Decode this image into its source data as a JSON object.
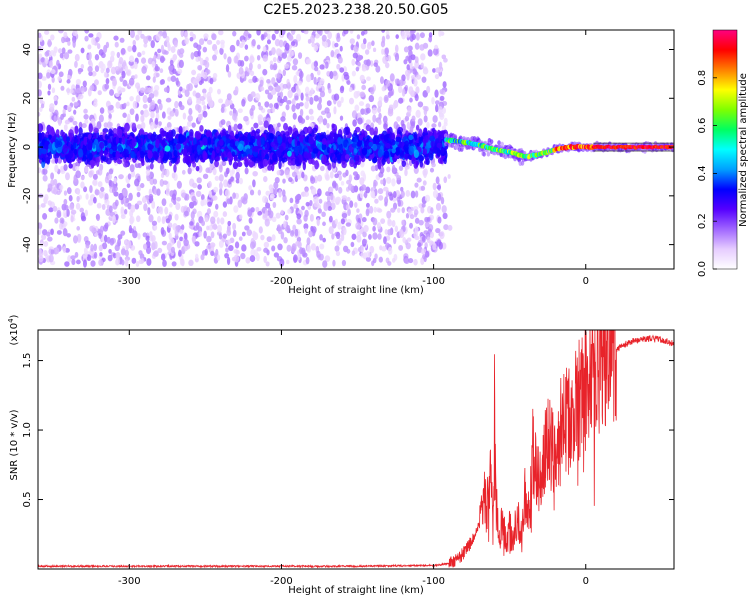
{
  "title": "C2E5.2023.238.20.50.G05",
  "colors": {
    "snr_line": "#e8232a",
    "axis": "#000000",
    "background": "#ffffff"
  },
  "chart_data": [
    {
      "type": "heatmap",
      "name": "spectrogram",
      "xlabel": "Height of straight line (km)",
      "ylabel": "Frequency (Hz)",
      "xlim": [
        -360,
        58
      ],
      "ylim": [
        -50,
        48
      ],
      "xticks": [
        -300,
        -200,
        -100,
        0
      ],
      "xtick_labels": [
        "-300",
        "-200",
        "-100",
        "0"
      ],
      "yticks": [
        -40,
        -20,
        0,
        20,
        40
      ],
      "ytick_labels": [
        "-40",
        "-20",
        "0",
        "20",
        "40"
      ],
      "colorbar": {
        "label": "Normalized spectral amplitude",
        "range": [
          0.0,
          1.0
        ],
        "ticks": [
          0.0,
          0.2,
          0.4,
          0.6,
          0.8
        ],
        "tick_labels": [
          "0.0",
          "0.2",
          "0.4",
          "0.6",
          "0.8"
        ],
        "colormap": [
          "#ffffff",
          "#e6ccff",
          "#a066ff",
          "#5500ff",
          "#0000ff",
          "#00a0ff",
          "#00ffff",
          "#00ff60",
          "#7fff00",
          "#ffff00",
          "#ff8000",
          "#ff0000",
          "#ff0080"
        ]
      },
      "features": [
        {
          "region": "noise",
          "x_range": [
            -360,
            -92
          ],
          "center_frequency": 0,
          "description_values": {
            "core_halfwidth": 8,
            "scatter_halfwidth": 48
          }
        },
        {
          "region": "signal_track",
          "x": [
            -92,
            -80,
            -70,
            -60,
            -50,
            -40,
            -30,
            -20,
            -10,
            0,
            10,
            20,
            40,
            58
          ],
          "frequency": [
            3,
            2,
            1,
            -1,
            -2,
            -4,
            -3,
            -1,
            0,
            0,
            0,
            0,
            0,
            0
          ]
        }
      ]
    },
    {
      "type": "line",
      "name": "snr",
      "xlabel": "Height of straight line (km)",
      "ylabel": "SNR (10 * v/v)",
      "multiplier_label": "(x10",
      "multiplier_exp": "4",
      "multiplier_close": ")",
      "xlim": [
        -360,
        58
      ],
      "ylim": [
        0.0,
        1.72
      ],
      "xticks": [
        -300,
        -200,
        -100,
        0
      ],
      "xtick_labels": [
        "-300",
        "-200",
        "-100",
        "0"
      ],
      "yticks": [
        0.5,
        1.0,
        1.5
      ],
      "ytick_labels": [
        "0.5",
        "1.0",
        "1.5"
      ],
      "series": [
        {
          "name": "SNR",
          "x": [
            -360,
            -300,
            -250,
            -200,
            -150,
            -100,
            -90,
            -85,
            -80,
            -75,
            -70,
            -67,
            -65,
            -63,
            -61,
            -60,
            -59,
            -57,
            -55,
            -52,
            -50,
            -48,
            -45,
            -42,
            -40,
            -37,
            -35,
            -30,
            -25,
            -20,
            -15,
            -10,
            -5,
            0,
            5,
            10,
            20,
            30,
            40,
            50,
            58
          ],
          "y": [
            0.02,
            0.02,
            0.02,
            0.02,
            0.02,
            0.025,
            0.04,
            0.06,
            0.12,
            0.2,
            0.3,
            0.55,
            0.4,
            0.8,
            0.3,
            1.15,
            0.5,
            0.25,
            0.35,
            0.2,
            0.3,
            0.2,
            0.4,
            0.2,
            0.55,
            0.35,
            0.85,
            0.65,
            0.95,
            0.8,
            1.1,
            1.05,
            1.2,
            1.3,
            1.4,
            1.5,
            1.58,
            1.64,
            1.66,
            1.65,
            1.62
          ]
        }
      ]
    }
  ]
}
